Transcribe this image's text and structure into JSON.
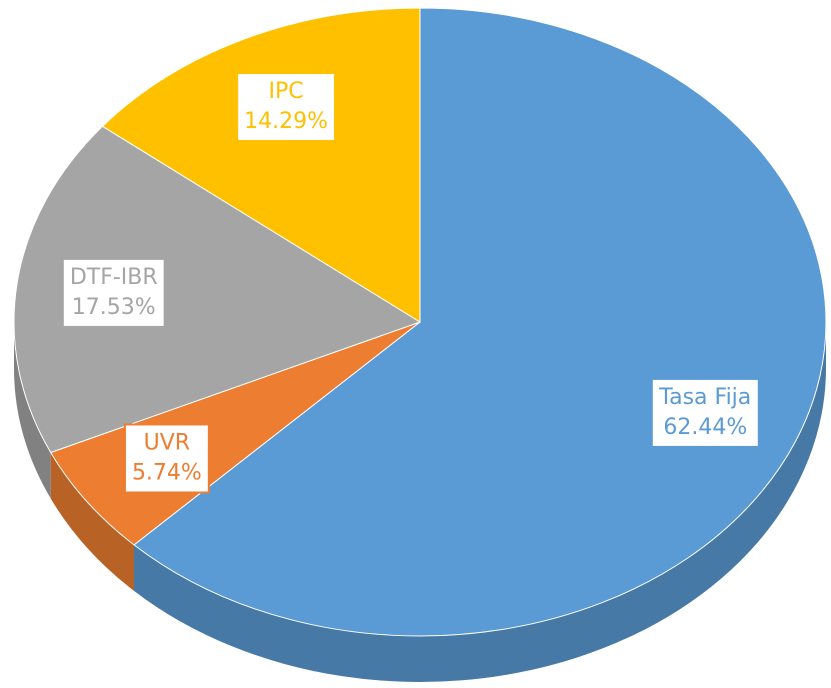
{
  "chart_data": {
    "type": "pie",
    "categories": [
      "Tasa Fija",
      "UVR",
      "DTF-IBR",
      "IPC"
    ],
    "values": [
      62.44,
      5.74,
      17.53,
      14.29
    ],
    "value_labels": [
      "62.44%",
      "5.74%",
      "17.53%",
      "14.29%"
    ],
    "colors": [
      "#5b9bd5",
      "#ed7d31",
      "#a5a5a5",
      "#ffc000"
    ]
  }
}
